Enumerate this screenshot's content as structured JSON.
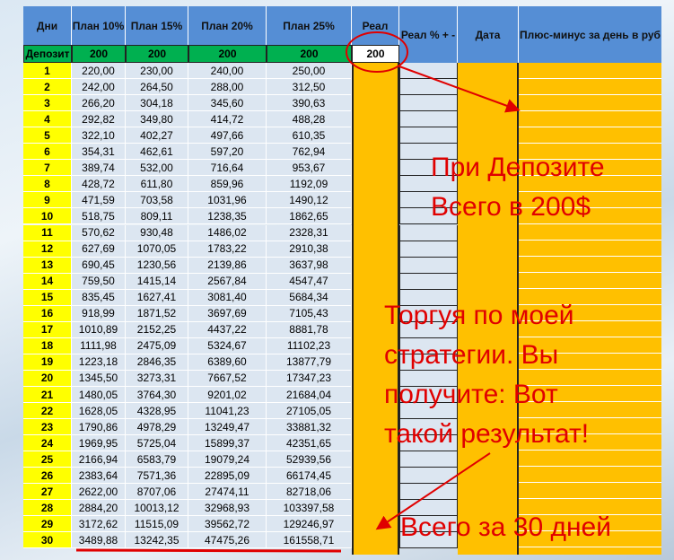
{
  "header": {
    "days": "Дни",
    "plan10": "План 10%",
    "plan15": "План 15%",
    "plan20": "План 20%",
    "plan25": "План 25%",
    "real": "Реал",
    "real_pct": "Реал % + -",
    "date": "Дата",
    "plus_minus": "Плюс-минус за день в руб"
  },
  "deposit": {
    "label": "Депозит",
    "plan10": "200",
    "plan15": "200",
    "plan20": "200",
    "plan25": "200",
    "real": "200"
  },
  "rows": [
    [
      "1",
      "220,00",
      "230,00",
      "240,00",
      "250,00"
    ],
    [
      "2",
      "242,00",
      "264,50",
      "288,00",
      "312,50"
    ],
    [
      "3",
      "266,20",
      "304,18",
      "345,60",
      "390,63"
    ],
    [
      "4",
      "292,82",
      "349,80",
      "414,72",
      "488,28"
    ],
    [
      "5",
      "322,10",
      "402,27",
      "497,66",
      "610,35"
    ],
    [
      "6",
      "354,31",
      "462,61",
      "597,20",
      "762,94"
    ],
    [
      "7",
      "389,74",
      "532,00",
      "716,64",
      "953,67"
    ],
    [
      "8",
      "428,72",
      "611,80",
      "859,96",
      "1192,09"
    ],
    [
      "9",
      "471,59",
      "703,58",
      "1031,96",
      "1490,12"
    ],
    [
      "10",
      "518,75",
      "809,11",
      "1238,35",
      "1862,65"
    ],
    [
      "11",
      "570,62",
      "930,48",
      "1486,02",
      "2328,31"
    ],
    [
      "12",
      "627,69",
      "1070,05",
      "1783,22",
      "2910,38"
    ],
    [
      "13",
      "690,45",
      "1230,56",
      "2139,86",
      "3637,98"
    ],
    [
      "14",
      "759,50",
      "1415,14",
      "2567,84",
      "4547,47"
    ],
    [
      "15",
      "835,45",
      "1627,41",
      "3081,40",
      "5684,34"
    ],
    [
      "16",
      "918,99",
      "1871,52",
      "3697,69",
      "7105,43"
    ],
    [
      "17",
      "1010,89",
      "2152,25",
      "4437,22",
      "8881,78"
    ],
    [
      "18",
      "1111,98",
      "2475,09",
      "5324,67",
      "11102,23"
    ],
    [
      "19",
      "1223,18",
      "2846,35",
      "6389,60",
      "13877,79"
    ],
    [
      "20",
      "1345,50",
      "3273,31",
      "7667,52",
      "17347,23"
    ],
    [
      "21",
      "1480,05",
      "3764,30",
      "9201,02",
      "21684,04"
    ],
    [
      "22",
      "1628,05",
      "4328,95",
      "11041,23",
      "27105,05"
    ],
    [
      "23",
      "1790,86",
      "4978,29",
      "13249,47",
      "33881,32"
    ],
    [
      "24",
      "1969,95",
      "5725,04",
      "15899,37",
      "42351,65"
    ],
    [
      "25",
      "2166,94",
      "6583,79",
      "19079,24",
      "52939,56"
    ],
    [
      "26",
      "2383,64",
      "7571,36",
      "22895,09",
      "66174,45"
    ],
    [
      "27",
      "2622,00",
      "8707,06",
      "27474,11",
      "82718,06"
    ],
    [
      "28",
      "2884,20",
      "10013,12",
      "32968,93",
      "103397,58"
    ],
    [
      "29",
      "3172,62",
      "11515,09",
      "39562,72",
      "129246,97"
    ],
    [
      "30",
      "3489,88",
      "13242,35",
      "47475,26",
      "161558,71"
    ]
  ],
  "annotations": {
    "deposit_line1": "При Депозите",
    "deposit_line2": "Всего в 200$",
    "strategy": [
      "Торгуя по моей",
      "стратегии. Вы",
      "получите: Вот",
      "такой результат!"
    ],
    "days30": "Всего за 30 дней"
  },
  "colors": {
    "header": "#558ed5",
    "deposit": "#00b050",
    "day": "#ffff00",
    "orange": "#ffc000",
    "annotation": "#e00000"
  }
}
